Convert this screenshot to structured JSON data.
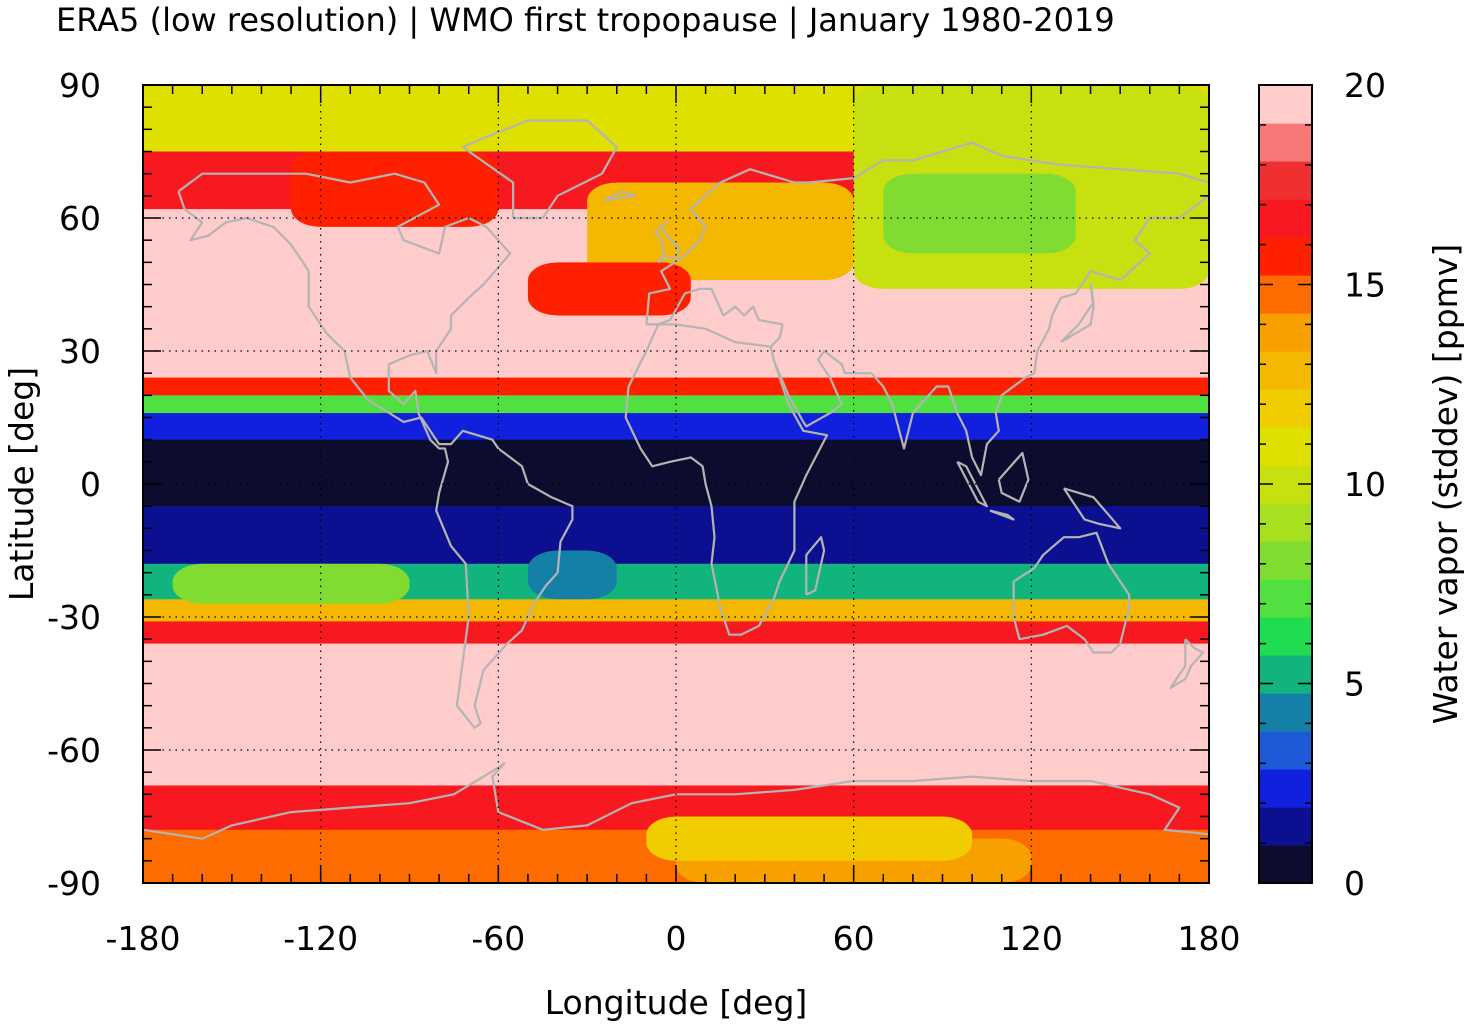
{
  "chart_data": {
    "type": "heatmap",
    "title": "ERA5 (low resolution) | WMO first tropopause | January 1980-2019",
    "xlabel": "Longitude [deg]",
    "ylabel": "Latitude [deg]",
    "colorbar_label": "Water vapor (stddev) [ppmv]",
    "xlim": [
      -180,
      180
    ],
    "ylim": [
      -90,
      90
    ],
    "x_ticks": [
      -180,
      -120,
      -60,
      0,
      60,
      120,
      180
    ],
    "y_ticks": [
      90,
      60,
      30,
      0,
      -30,
      -60,
      -90
    ],
    "x_tick_labels": [
      "-180",
      "-120",
      "-60",
      "0",
      "60",
      "120",
      "180"
    ],
    "y_tick_labels": [
      "90",
      "60",
      "30",
      "0",
      "-30",
      "-60",
      "-90"
    ],
    "colorbar_range": [
      0,
      20
    ],
    "colorbar_ticks": [
      0,
      5,
      10,
      15,
      20
    ],
    "colorbar_tick_labels": [
      "0",
      "5",
      "10",
      "15",
      "20"
    ],
    "grid": true,
    "grid_style": "dotted",
    "coastlines": true,
    "coastline_color": "#b4b4b4",
    "colorbar_colors": [
      "#0c0c2e",
      "#0c1090",
      "#1020dc",
      "#1e5ad8",
      "#1480a8",
      "#10b47c",
      "#20dc50",
      "#50e040",
      "#80dc30",
      "#a8e020",
      "#c8e010",
      "#e0e000",
      "#f0cc00",
      "#f4b800",
      "#f8a000",
      "#fc6c00",
      "#ff2000",
      "#f81820",
      "#f03030",
      "#f87878",
      "#ffcccc"
    ],
    "colorbar_colors_note": "",
    "field_lat_bands": [
      {
        "lat_from": 90,
        "lat_to": 75,
        "value": 11.2
      },
      {
        "lat_from": 75,
        "lat_to": 62,
        "value": 16.5
      },
      {
        "lat_from": 62,
        "lat_to": 42,
        "value": 20
      },
      {
        "lat_from": 42,
        "lat_to": 24,
        "value": 20
      },
      {
        "lat_from": 24,
        "lat_to": 20,
        "value": 16
      },
      {
        "lat_from": 20,
        "lat_to": 16,
        "value": 7
      },
      {
        "lat_from": 16,
        "lat_to": 10,
        "value": 2
      },
      {
        "lat_from": 10,
        "lat_to": -5,
        "value": 0.5
      },
      {
        "lat_from": -5,
        "lat_to": -18,
        "value": 1.5
      },
      {
        "lat_from": -18,
        "lat_to": -26,
        "value": 5
      },
      {
        "lat_from": -26,
        "lat_to": -31,
        "value": 13
      },
      {
        "lat_from": -31,
        "lat_to": -36,
        "value": 16.5
      },
      {
        "lat_from": -36,
        "lat_to": -68,
        "value": 20
      },
      {
        "lat_from": -68,
        "lat_to": -78,
        "value": 16.5
      },
      {
        "lat_from": -78,
        "lat_to": -90,
        "value": 15
      }
    ],
    "field_patches": [
      {
        "lon_from": 60,
        "lon_to": 180,
        "lat_from": 90,
        "lat_to": 44,
        "value": 10
      },
      {
        "lon_from": 70,
        "lon_to": 135,
        "lat_from": 70,
        "lat_to": 52,
        "value": 8.5
      },
      {
        "lon_from": -30,
        "lon_to": 60,
        "lat_from": 68,
        "lat_to": 46,
        "value": 13
      },
      {
        "lon_from": -50,
        "lon_to": 5,
        "lat_from": 50,
        "lat_to": 38,
        "value": 15.5
      },
      {
        "lon_from": -130,
        "lon_to": -60,
        "lat_from": 75,
        "lat_to": 58,
        "value": 15.8
      },
      {
        "lon_from": -170,
        "lon_to": -90,
        "lat_from": -18,
        "lat_to": -27,
        "value": 8
      },
      {
        "lon_from": -50,
        "lon_to": -20,
        "lat_from": -15,
        "lat_to": -26,
        "value": 4.5
      },
      {
        "lon_from": 0,
        "lon_to": 120,
        "lat_from": -80,
        "lat_to": -90,
        "value": 13.5
      },
      {
        "lon_from": -10,
        "lon_to": 100,
        "lat_from": -75,
        "lat_to": -85,
        "value": 11.5
      }
    ]
  }
}
